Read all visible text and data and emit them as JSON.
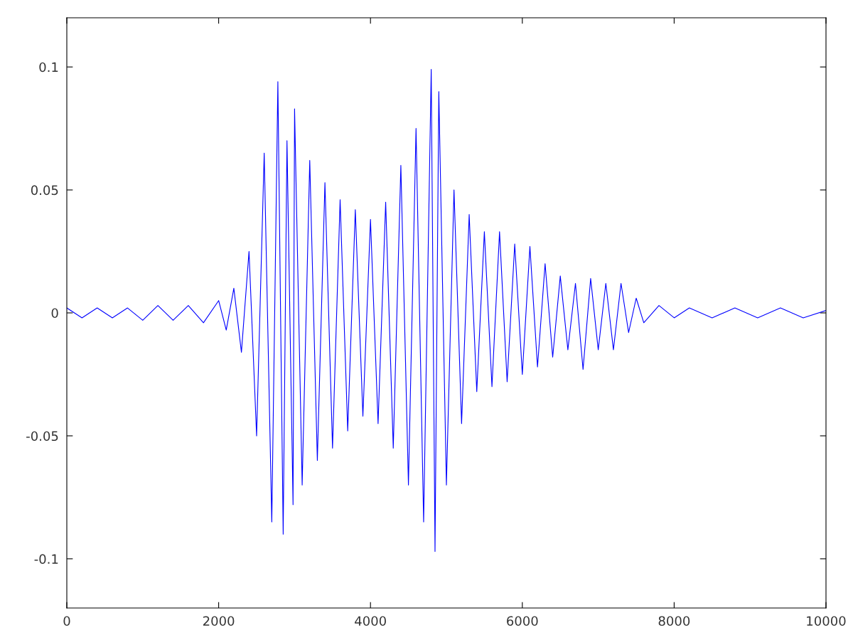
{
  "chart_data": {
    "type": "line",
    "x": [
      0,
      200,
      400,
      600,
      800,
      1000,
      1200,
      1400,
      1600,
      1800,
      2000,
      2100,
      2200,
      2300,
      2400,
      2500,
      2600,
      2700,
      2780,
      2850,
      2900,
      2980,
      3000,
      3100,
      3200,
      3300,
      3400,
      3500,
      3600,
      3700,
      3800,
      3900,
      4000,
      4100,
      4200,
      4300,
      4400,
      4500,
      4600,
      4700,
      4800,
      4850,
      4900,
      5000,
      5100,
      5200,
      5300,
      5400,
      5500,
      5600,
      5700,
      5800,
      5900,
      6000,
      6100,
      6200,
      6300,
      6400,
      6500,
      6600,
      6700,
      6800,
      6900,
      7000,
      7100,
      7200,
      7300,
      7400,
      7500,
      7600,
      7800,
      8000,
      8200,
      8500,
      8800,
      9100,
      9400,
      9700,
      10000
    ],
    "series": [
      {
        "color": "#0000ff",
        "values": [
          0.002,
          -0.002,
          0.002,
          -0.002,
          0.002,
          -0.003,
          0.003,
          -0.003,
          0.003,
          -0.004,
          0.005,
          -0.007,
          0.01,
          -0.016,
          0.025,
          -0.05,
          0.065,
          -0.085,
          0.094,
          -0.09,
          0.07,
          -0.078,
          0.083,
          -0.07,
          0.062,
          -0.06,
          0.053,
          -0.055,
          0.046,
          -0.048,
          0.042,
          -0.042,
          0.038,
          -0.045,
          0.045,
          -0.055,
          0.06,
          -0.07,
          0.075,
          -0.085,
          0.099,
          -0.097,
          0.09,
          -0.07,
          0.05,
          -0.045,
          0.04,
          -0.032,
          0.033,
          -0.03,
          0.033,
          -0.028,
          0.028,
          -0.025,
          0.027,
          -0.022,
          0.02,
          -0.018,
          0.015,
          -0.015,
          0.012,
          -0.023,
          0.014,
          -0.015,
          0.012,
          -0.015,
          0.012,
          -0.008,
          0.006,
          -0.004,
          0.003,
          -0.002,
          0.002,
          -0.002,
          0.002,
          -0.002,
          0.002,
          -0.002,
          0.001
        ]
      }
    ],
    "xlim": [
      0,
      10000
    ],
    "xticks": [
      0,
      2000,
      4000,
      6000,
      8000,
      10000
    ],
    "ylim": [
      -0.12,
      0.12
    ],
    "yticks": [
      -0.1,
      -0.05,
      0,
      0.05,
      0.1
    ],
    "grid": false,
    "legend": false
  }
}
